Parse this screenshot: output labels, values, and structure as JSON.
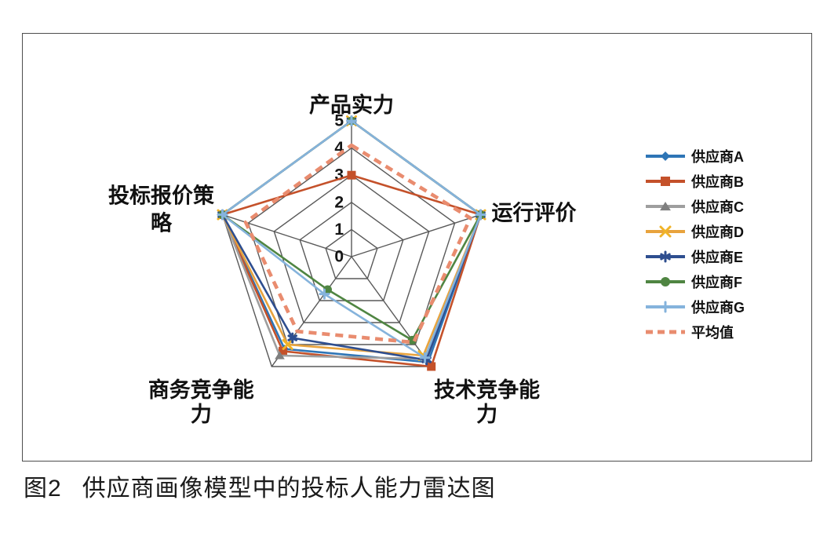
{
  "figure": {
    "caption_label": "图2",
    "caption_text": "供应商画像模型中的投标人能力雷达图"
  },
  "chart_data": {
    "type": "radar",
    "title": "",
    "categories": [
      "产品实力",
      "运行评价",
      "技术竞争能力",
      "商务竞争能力",
      "投标报价策略"
    ],
    "axis_range": [
      0,
      5
    ],
    "tick_labels": [
      "0",
      "1",
      "2",
      "3",
      "4",
      "5"
    ],
    "grid": true,
    "grid_color": "#595959",
    "legend_position": "right",
    "series": [
      {
        "id": "supplier-a",
        "name": "供应商A",
        "color": "#2E75B6",
        "marker": "diamond",
        "dashed": false,
        "values": [
          5,
          5,
          4.8,
          4.2,
          5
        ]
      },
      {
        "id": "supplier-b",
        "name": "供应商B",
        "color": "#C4512A",
        "marker": "square",
        "dashed": false,
        "values": [
          3,
          5,
          5,
          4.3,
          5
        ]
      },
      {
        "id": "supplier-c",
        "name": "供应商C",
        "color": "#9E9E9E",
        "marker": "triangle",
        "marker_color": "#7F7F7F",
        "dashed": false,
        "values": [
          5,
          5,
          4.65,
          4.5,
          5
        ]
      },
      {
        "id": "supplier-d",
        "name": "供应商D",
        "color": "#E8A33D",
        "marker": "x",
        "marker_color": "#F0B327",
        "dashed": false,
        "values": [
          5,
          5,
          4.5,
          4.0,
          5
        ]
      },
      {
        "id": "supplier-e",
        "name": "供应商E",
        "color": "#2E4E8F",
        "marker": "asterisk",
        "dashed": false,
        "values": [
          5,
          5,
          4.7,
          3.7,
          5
        ]
      },
      {
        "id": "supplier-f",
        "name": "供应商F",
        "color": "#4F8542",
        "marker": "circle",
        "dashed": false,
        "values": [
          5,
          5,
          3.8,
          1.5,
          5
        ]
      },
      {
        "id": "supplier-g",
        "name": "供应商G",
        "color": "#85B3DC",
        "marker": "plus",
        "dashed": false,
        "values": [
          5,
          5,
          4.6,
          1.7,
          5
        ]
      },
      {
        "id": "average",
        "name": "平均值",
        "color": "#E98C6F",
        "marker": "none",
        "dashed": true,
        "values": [
          4.1,
          4.6,
          3.9,
          3.4,
          4.1
        ]
      }
    ]
  }
}
